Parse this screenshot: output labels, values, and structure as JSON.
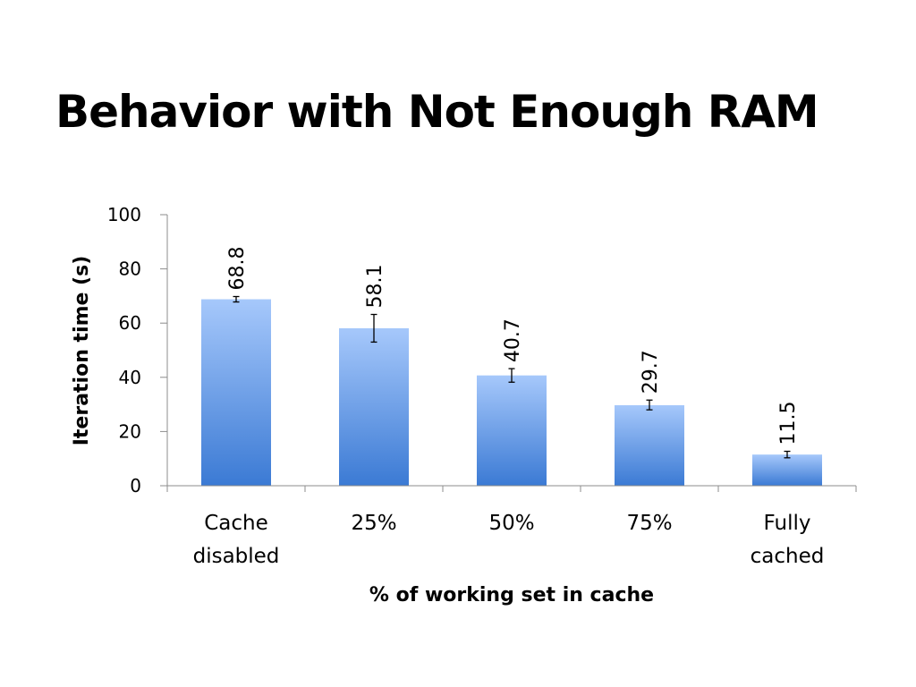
{
  "slide": {
    "title": "Behavior with Not Enough RAM"
  },
  "colors": {
    "bar_top": "#a6c8fb",
    "bar_bottom": "#3b7ad4",
    "axis": "#8c8c8c",
    "error_bar": "#000000"
  },
  "chart_data": {
    "type": "bar",
    "title": "",
    "xlabel": "% of working set in cache",
    "ylabel": "Iteration time (s)",
    "categories": [
      [
        "Cache",
        "disabled"
      ],
      [
        "25%"
      ],
      [
        "50%"
      ],
      [
        "75%"
      ],
      [
        "Fully",
        "cached"
      ]
    ],
    "values": [
      68.8,
      58.1,
      40.7,
      29.7,
      11.5
    ],
    "data_labels": [
      "68.8",
      "58.1",
      "40.7",
      "29.7",
      "11.5"
    ],
    "error_bars": [
      {
        "low": 67.8,
        "high": 69.8
      },
      {
        "low": 53.0,
        "high": 63.2
      },
      {
        "low": 38.2,
        "high": 43.2
      },
      {
        "low": 28.0,
        "high": 31.6
      },
      {
        "low": 10.3,
        "high": 12.7
      }
    ],
    "ylim": [
      0,
      100
    ],
    "yticks": [
      0,
      20,
      40,
      60,
      80,
      100
    ],
    "grid": false,
    "legend": "none"
  }
}
